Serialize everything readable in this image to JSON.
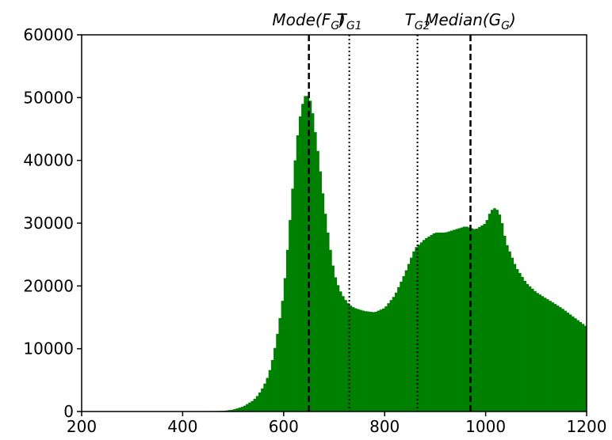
{
  "chart_data": {
    "type": "bar",
    "title": "",
    "xlabel": "",
    "ylabel": "",
    "xlim": [
      200,
      1200
    ],
    "ylim": [
      0,
      60000
    ],
    "x_ticks": [
      200,
      400,
      600,
      800,
      1000,
      1200
    ],
    "y_ticks": [
      0,
      10000,
      20000,
      30000,
      40000,
      50000,
      60000
    ],
    "grid": false,
    "legend": "none",
    "bar_color": "#008000",
    "bin_width": 5,
    "series": [
      {
        "x": [
          200,
          400,
          480,
          500,
          520,
          540,
          550,
          560,
          570,
          580,
          590,
          600,
          610,
          620,
          630,
          640,
          645,
          650,
          655,
          660,
          670,
          680,
          690,
          700,
          710,
          720,
          730,
          740,
          760,
          780,
          800,
          820,
          840,
          860,
          880,
          900,
          920,
          940,
          960,
          980,
          1000,
          1010,
          1020,
          1030,
          1040,
          1060,
          1080,
          1100,
          1150,
          1200
        ],
        "values": [
          0,
          0,
          100,
          300,
          800,
          1800,
          2700,
          4000,
          5800,
          9000,
          13500,
          19000,
          28000,
          38000,
          46000,
          50000,
          50500,
          50000,
          49000,
          46000,
          40000,
          33000,
          27000,
          22000,
          19500,
          18000,
          17000,
          16500,
          16000,
          15800,
          16500,
          18500,
          22000,
          26000,
          27500,
          28500,
          28500,
          29000,
          29500,
          29000,
          30000,
          32000,
          32500,
          31000,
          27000,
          23000,
          20500,
          19000,
          16500,
          13500
        ]
      }
    ],
    "vlines": [
      {
        "x": 650,
        "label": "Mode(",
        "sub": "G",
        "var": "F",
        "close": ")",
        "style": "dashed"
      },
      {
        "x": 730,
        "label": "T",
        "sub": "G1",
        "var": "",
        "close": "",
        "style": "dotted"
      },
      {
        "x": 865,
        "label": "T",
        "sub": "G2",
        "var": "",
        "close": "",
        "style": "dotted"
      },
      {
        "x": 970,
        "label": "Median(",
        "sub": "G",
        "var": "G",
        "close": ")",
        "style": "dashed"
      }
    ]
  }
}
